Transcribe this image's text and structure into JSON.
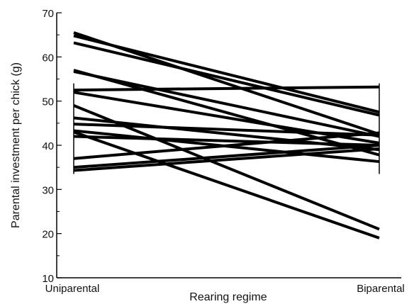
{
  "chart_data": {
    "type": "line",
    "categories": [
      "Uniparental",
      "Biparental"
    ],
    "xlabel": "Rearing regime",
    "ylabel": "Parental investment per chick (g)",
    "ylim": [
      10,
      70
    ],
    "yticks": [
      10,
      20,
      30,
      40,
      50,
      60,
      70
    ],
    "grid": false,
    "series": [
      {
        "values": [
          65.5,
          42.5
        ]
      },
      {
        "values": [
          64.8,
          47.5
        ]
      },
      {
        "values": [
          63.2,
          46.8
        ]
      },
      {
        "values": [
          57.0,
          37.8
        ]
      },
      {
        "values": [
          56.7,
          42.0
        ]
      },
      {
        "values": [
          52.5,
          53.2
        ]
      },
      {
        "values": [
          52.0,
          40.5
        ]
      },
      {
        "values": [
          49.0,
          21.0
        ]
      },
      {
        "values": [
          46.2,
          39.0
        ]
      },
      {
        "values": [
          44.8,
          42.3
        ]
      },
      {
        "values": [
          43.3,
          36.3
        ]
      },
      {
        "values": [
          43.0,
          19.0
        ]
      },
      {
        "values": [
          42.0,
          40.0
        ]
      },
      {
        "values": [
          37.0,
          42.8
        ]
      },
      {
        "values": [
          35.0,
          40.0
        ]
      },
      {
        "values": [
          34.3,
          39.2
        ]
      }
    ]
  }
}
